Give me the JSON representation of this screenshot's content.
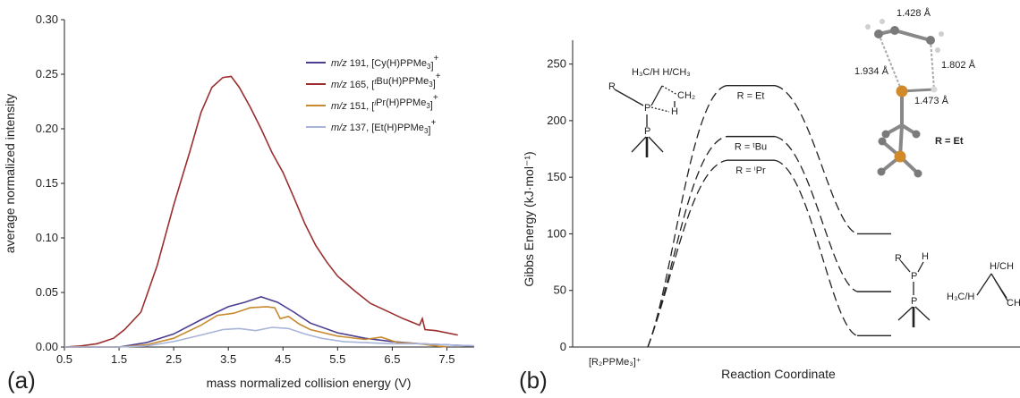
{
  "chart_data": [
    {
      "type": "line",
      "panel_label": "(a)",
      "xlabel": "mass normalized collision energy (V)",
      "ylabel": "average normalized intensity",
      "xlim": [
        0.5,
        8.0
      ],
      "ylim": [
        0,
        0.3
      ],
      "xticks": [
        "0.5",
        "1.5",
        "2.5",
        "3.5",
        "4.5",
        "5.5",
        "6.5",
        "7.5"
      ],
      "yticks": [
        "0.00",
        "0.05",
        "0.10",
        "0.15",
        "0.20",
        "0.25",
        "0.30"
      ],
      "legend_placement": "top-right",
      "series": [
        {
          "name_prefix": "m/z 191, [Cy(H)PPMe",
          "name_sub": "3",
          "name_suffix": "]",
          "name_sup": "+",
          "color": "#4b3d8f",
          "points": [
            [
              0.5,
              0.0
            ],
            [
              1.0,
              0.0
            ],
            [
              1.5,
              0.0
            ],
            [
              2.0,
              0.004
            ],
            [
              2.5,
              0.012
            ],
            [
              3.0,
              0.025
            ],
            [
              3.5,
              0.037
            ],
            [
              3.8,
              0.041
            ],
            [
              4.1,
              0.046
            ],
            [
              4.4,
              0.041
            ],
            [
              4.7,
              0.032
            ],
            [
              5.0,
              0.022
            ],
            [
              5.5,
              0.013
            ],
            [
              6.0,
              0.008
            ],
            [
              6.5,
              0.005
            ],
            [
              7.0,
              0.003
            ],
            [
              7.5,
              0.002
            ],
            [
              8.0,
              0.001
            ]
          ]
        },
        {
          "name_prefix": "m/z 165, [",
          "name_italic": "t",
          "name_mid": "Bu(H)PPMe",
          "name_sub": "3",
          "name_suffix": "]",
          "name_sup": "+",
          "color": "#9b2f2f",
          "points": [
            [
              0.5,
              0.0
            ],
            [
              0.8,
              0.001
            ],
            [
              1.1,
              0.003
            ],
            [
              1.4,
              0.008
            ],
            [
              1.6,
              0.016
            ],
            [
              1.9,
              0.032
            ],
            [
              2.2,
              0.075
            ],
            [
              2.5,
              0.13
            ],
            [
              2.8,
              0.18
            ],
            [
              3.0,
              0.215
            ],
            [
              3.2,
              0.238
            ],
            [
              3.4,
              0.247
            ],
            [
              3.55,
              0.248
            ],
            [
              3.7,
              0.238
            ],
            [
              3.9,
              0.22
            ],
            [
              4.1,
              0.2
            ],
            [
              4.3,
              0.178
            ],
            [
              4.5,
              0.16
            ],
            [
              4.7,
              0.137
            ],
            [
              4.9,
              0.113
            ],
            [
              5.1,
              0.093
            ],
            [
              5.3,
              0.078
            ],
            [
              5.5,
              0.065
            ],
            [
              5.8,
              0.052
            ],
            [
              6.1,
              0.04
            ],
            [
              6.4,
              0.033
            ],
            [
              6.7,
              0.026
            ],
            [
              7.0,
              0.02
            ],
            [
              7.05,
              0.026
            ],
            [
              7.1,
              0.016
            ],
            [
              7.3,
              0.015
            ],
            [
              7.7,
              0.011
            ]
          ]
        },
        {
          "name_prefix": "m/z 151, [",
          "name_italic": "i",
          "name_mid": "Pr(H)PPMe",
          "name_sub": "3",
          "name_suffix": "]",
          "name_sup": "+",
          "color": "#c88a2e",
          "points": [
            [
              0.5,
              0.0
            ],
            [
              1.5,
              0.0
            ],
            [
              2.0,
              0.002
            ],
            [
              2.5,
              0.008
            ],
            [
              3.0,
              0.02
            ],
            [
              3.3,
              0.029
            ],
            [
              3.6,
              0.031
            ],
            [
              3.9,
              0.036
            ],
            [
              4.2,
              0.037
            ],
            [
              4.35,
              0.036
            ],
            [
              4.45,
              0.026
            ],
            [
              4.6,
              0.028
            ],
            [
              4.8,
              0.021
            ],
            [
              5.0,
              0.016
            ],
            [
              5.5,
              0.01
            ],
            [
              6.0,
              0.007
            ],
            [
              6.3,
              0.009
            ],
            [
              6.6,
              0.004
            ],
            [
              7.0,
              0.003
            ],
            [
              7.3,
              0.001
            ],
            [
              7.5,
              0.0
            ]
          ]
        },
        {
          "name_prefix": "m/z 137, [Et(H)PPMe",
          "name_sub": "3",
          "name_suffix": "]",
          "name_sup": "+",
          "color": "#a8b4d8",
          "points": [
            [
              0.5,
              0.0
            ],
            [
              1.5,
              0.0
            ],
            [
              2.0,
              0.001
            ],
            [
              2.5,
              0.005
            ],
            [
              3.0,
              0.011
            ],
            [
              3.4,
              0.016
            ],
            [
              3.7,
              0.017
            ],
            [
              4.0,
              0.015
            ],
            [
              4.3,
              0.018
            ],
            [
              4.6,
              0.017
            ],
            [
              4.9,
              0.012
            ],
            [
              5.2,
              0.008
            ],
            [
              5.6,
              0.005
            ],
            [
              6.0,
              0.004
            ],
            [
              6.5,
              0.003
            ],
            [
              7.0,
              0.003
            ],
            [
              7.5,
              0.002
            ],
            [
              8.0,
              0.001
            ]
          ]
        }
      ]
    },
    {
      "type": "diagram",
      "panel_label": "(b)",
      "xlabel": "Reaction Coordinate",
      "ylabel": "Gibbs Energy (kJ·mol⁻¹)",
      "ylim": [
        0,
        275
      ],
      "yticks": [
        0,
        50,
        100,
        150,
        200,
        250
      ],
      "start_label": "[R₂PPMe₃]⁺",
      "start_energy": 0,
      "pathways": [
        {
          "ts_label": "R = Et",
          "ts_energy": 231,
          "product_energy": 100
        },
        {
          "ts_label": "R = ᵗBu",
          "ts_energy": 186,
          "product_energy": 49
        },
        {
          "ts_label": "R = ⁱPr",
          "ts_energy": 165,
          "product_energy": 10
        }
      ],
      "ts_structure": {
        "label": "R = Et",
        "distances": [
          "1.428 Å",
          "1.934 Å",
          "1.802 Å",
          "1.473 Å"
        ]
      },
      "chem_labels": {
        "ts_top": "H₃C/H H/CH₃",
        "ts_r": "R",
        "ts_p1": "P",
        "ts_p2": "P",
        "ts_ch2": "CH₂",
        "ts_h": "H",
        "prod_r": "R",
        "prod_h": "H",
        "prod_p1": "P",
        "prod_p2": "P",
        "alk_top": "H/CH",
        "alk_left": "H₃C/H",
        "alk_right": "CH"
      }
    }
  ]
}
